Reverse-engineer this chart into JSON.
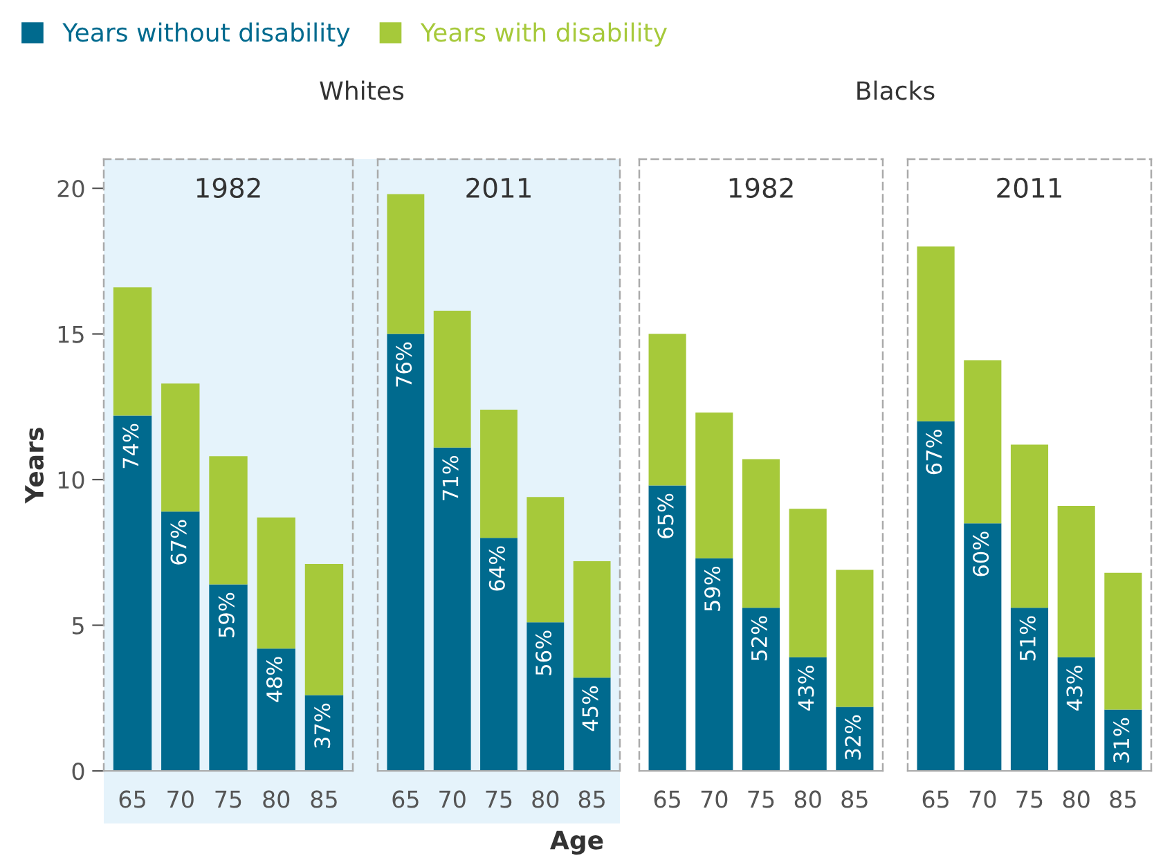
{
  "chart_data": [
    {
      "type": "bar",
      "title": "1982",
      "ylabel": "Years",
      "annotations": [
        "Whites",
        {
          "text": "74%",
          "x": "65",
          "y": 12.2
        },
        {
          "text": "67%",
          "x": "70",
          "y": 8.9
        },
        {
          "text": "59%",
          "x": "75",
          "y": 6.4
        },
        {
          "text": "48%",
          "x": "80",
          "y": 4.2
        },
        {
          "text": "37%",
          "x": "85",
          "y": 2.6
        }
      ],
      "stacked": true,
      "legend": "top",
      "categories": [
        "65",
        "70",
        "75",
        "80",
        "85"
      ],
      "ylim": [
        0,
        21
      ],
      "yticks": [
        0,
        5,
        10,
        15,
        20
      ],
      "series": [
        {
          "name": "Years without disability",
          "color": "#006a8e",
          "values": [
            12.2,
            8.9,
            6.4,
            4.2,
            2.6
          ]
        },
        {
          "name": "Years with disability",
          "color": "#a6c93a",
          "values": [
            4.4,
            4.4,
            4.4,
            4.5,
            4.5
          ]
        }
      ]
    },
    {
      "type": "bar",
      "title": "2011",
      "xlabel": "Age",
      "annotations": [
        {
          "text": "76%",
          "x": "65",
          "y": 15.0
        },
        {
          "text": "71%",
          "x": "70",
          "y": 11.1
        },
        {
          "text": "64%",
          "x": "75",
          "y": 8.0
        },
        {
          "text": "56%",
          "x": "80",
          "y": 5.1
        },
        {
          "text": "45%",
          "x": "85",
          "y": 3.2
        }
      ],
      "stacked": true,
      "tick_labels": "x",
      "categories": [
        "65",
        "70",
        "75",
        "80",
        "85"
      ],
      "ylim": [
        0,
        21
      ],
      "yticks": [
        0,
        5,
        10,
        15,
        20
      ],
      "series": [
        {
          "color": "#006a8e",
          "values": [
            15.0,
            11.1,
            8.0,
            5.1,
            3.2
          ]
        },
        {
          "color": "#a6c93a",
          "values": [
            4.8,
            4.7,
            4.4,
            4.3,
            4.0
          ]
        }
      ]
    },
    {
      "type": "bar",
      "title": "1982",
      "annotations": [
        "Blacks",
        {
          "text": "65%",
          "x": "65",
          "y": 9.8
        },
        {
          "text": "59%",
          "x": "70",
          "y": 7.3
        },
        {
          "text": "52%",
          "x": "75",
          "y": 5.6
        },
        {
          "text": "43%",
          "x": "80",
          "y": 3.9
        },
        {
          "text": "32%",
          "x": "85",
          "y": 2.2
        }
      ],
      "stacked": true,
      "tick_labels": "x",
      "categories": [
        "65",
        "70",
        "75",
        "80",
        "85"
      ],
      "ylim": [
        0,
        21
      ],
      "yticks": [
        0,
        5,
        10,
        15,
        20
      ],
      "series": [
        {
          "color": "#006a8e",
          "values": [
            9.8,
            7.3,
            5.6,
            3.9,
            2.2
          ]
        },
        {
          "color": "#a6c93a",
          "values": [
            5.2,
            5.0,
            5.1,
            5.1,
            4.7
          ]
        }
      ]
    },
    {
      "type": "bar",
      "title": "2011",
      "annotations": [
        {
          "text": "67%",
          "x": "65",
          "y": 12.0
        },
        {
          "text": "60%",
          "x": "70",
          "y": 8.5
        },
        {
          "text": "51%",
          "x": "75",
          "y": 5.6
        },
        {
          "text": "43%",
          "x": "80",
          "y": 3.9
        },
        {
          "text": "31%",
          "x": "85",
          "y": 2.1
        }
      ],
      "stacked": true,
      "tick_labels": "x",
      "categories": [
        "65",
        "70",
        "75",
        "80",
        "85"
      ],
      "ylim": [
        0,
        21
      ],
      "yticks": [
        0,
        5,
        10,
        15,
        20
      ],
      "series": [
        {
          "color": "#006a8e",
          "values": [
            12.0,
            8.5,
            5.6,
            3.9,
            2.1
          ]
        },
        {
          "color": "#a6c93a",
          "values": [
            6.0,
            5.6,
            5.6,
            5.2,
            4.7
          ]
        }
      ]
    }
  ]
}
